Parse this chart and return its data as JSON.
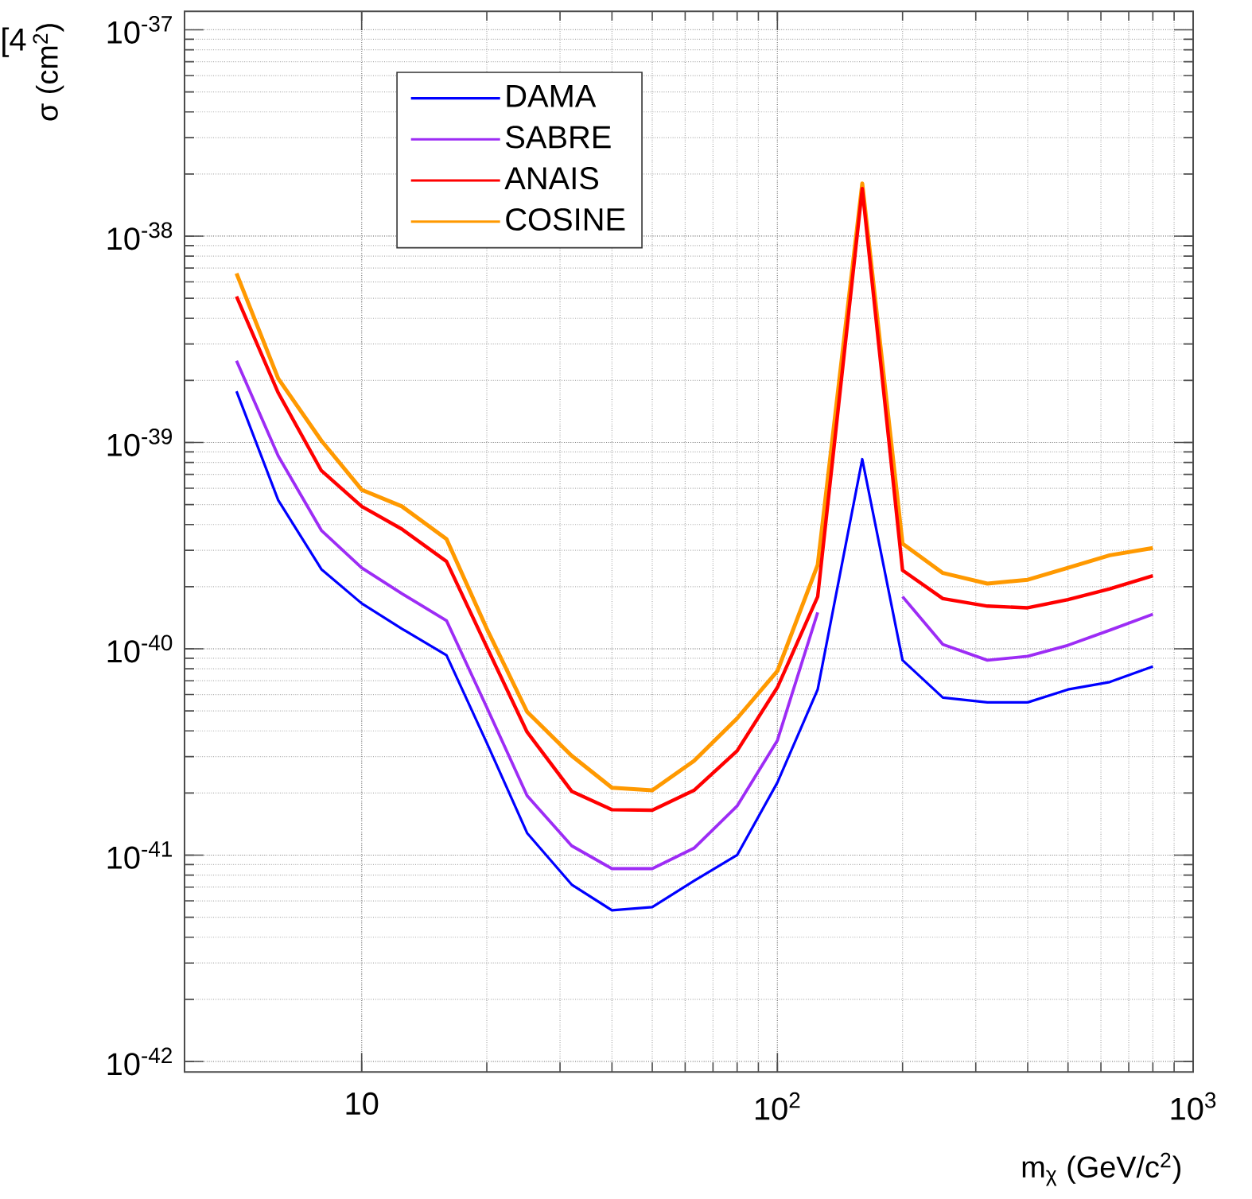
{
  "chart_data": {
    "type": "line",
    "log": "xy",
    "grid": true,
    "legend": "top left",
    "marker": "none",
    "line_style": "solid",
    "xlabel": "m$_{χ}$ (GeV/c$^{2}$)",
    "ylabel": "σ (cm$^{2}$)",
    "annotations": [
      "[4"
    ],
    "xlim": [
      3.75,
      1000
    ],
    "ylim": [
      8.9e-43,
      1.23e-37
    ],
    "xticks": [
      {
        "value": 10,
        "label": "10"
      },
      {
        "value": 100,
        "label": "10$^{2}$"
      },
      {
        "value": 1000,
        "label": "10$^{3}$"
      }
    ],
    "yticks": [
      {
        "value": 1e-42,
        "label": "10$^{-42}$"
      },
      {
        "value": 1e-41,
        "label": "10$^{-41}$"
      },
      {
        "value": 1e-40,
        "label": "10$^{-40}$"
      },
      {
        "value": 1e-39,
        "label": "10$^{-39}$"
      },
      {
        "value": 1e-38,
        "label": "10$^{-38}$"
      },
      {
        "value": 1e-37,
        "label": "10$^{-37}$"
      }
    ],
    "x": [
      5,
      6.3,
      8,
      10,
      12.5,
      16,
      20,
      25,
      32,
      40,
      50,
      63,
      80,
      100,
      125,
      160,
      200,
      250,
      320,
      400,
      500,
      630,
      800
    ],
    "series": [
      {
        "name": "DAMA",
        "color": "#0000ff",
        "values": [
          1.77e-39,
          5.25e-40,
          2.43e-40,
          1.66e-40,
          1.25e-40,
          9.3e-41,
          3.5e-41,
          1.28e-41,
          7.2e-42,
          5.4e-42,
          5.6e-42,
          7.5e-42,
          1e-41,
          2.25e-41,
          6.35e-41,
          8.3e-40,
          8.8e-41,
          5.8e-41,
          5.5e-41,
          5.5e-41,
          6.35e-41,
          6.9e-41,
          8.2e-41
        ]
      },
      {
        "name": "SABRE",
        "color": "#9d2cf5",
        "values": [
          2.49e-39,
          8.6e-40,
          3.75e-40,
          2.47e-40,
          1.85e-40,
          1.37e-40,
          5.2e-41,
          1.94e-41,
          1.11e-41,
          8.6e-42,
          8.6e-42,
          1.08e-41,
          1.73e-41,
          3.6e-41,
          1.5e-40,
          null,
          1.79e-40,
          1.05e-40,
          8.8e-41,
          9.2e-41,
          1.04e-40,
          1.23e-40,
          1.47e-40
        ]
      },
      {
        "name": "ANAIS",
        "color": "#ff0000",
        "values": [
          5.1e-39,
          1.74e-39,
          7.3e-40,
          4.9e-40,
          3.8e-40,
          2.65e-40,
          1.02e-40,
          3.95e-41,
          2.04e-41,
          1.66e-41,
          1.65e-41,
          2.06e-41,
          3.2e-41,
          6.5e-41,
          1.79e-40,
          1.7e-38,
          2.4e-40,
          1.75e-40,
          1.61e-40,
          1.58e-40,
          1.73e-40,
          1.95e-40,
          2.26e-40
        ]
      },
      {
        "name": "COSINE",
        "color": "#ff9900",
        "values": [
          6.6e-39,
          2.04e-39,
          1.02e-39,
          5.9e-40,
          4.9e-40,
          3.4e-40,
          1.25e-40,
          4.95e-41,
          3.03e-41,
          2.12e-41,
          2.06e-41,
          2.86e-41,
          4.6e-41,
          7.8e-41,
          2.55e-40,
          1.8e-38,
          3.23e-40,
          2.33e-40,
          2.07e-40,
          2.16e-40,
          2.47e-40,
          2.84e-40,
          3.08e-40
        ]
      }
    ]
  }
}
